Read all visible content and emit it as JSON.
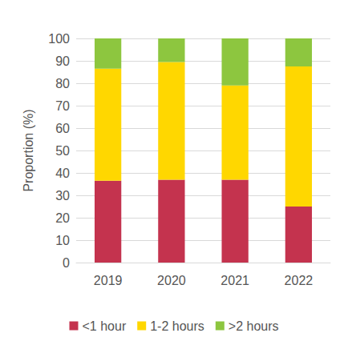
{
  "chart_data": {
    "type": "bar",
    "stacked": true,
    "grid": true,
    "legend": "bottom",
    "y_label": "Proportion (%)",
    "categories": [
      "2019",
      "2020",
      "2021",
      "2022"
    ],
    "series": [
      {
        "name": "<1 hour",
        "color": "#c4334e",
        "values": [
          36.5,
          37,
          37,
          25
        ]
      },
      {
        "name": "1-2 hours",
        "color": "#ffd700",
        "values": [
          50,
          52.5,
          42,
          62.5
        ]
      },
      {
        "name": ">2 hours",
        "color": "#8dc63f",
        "values": [
          13.5,
          10.5,
          21,
          12.5
        ]
      }
    ],
    "ylim": [
      0,
      100
    ],
    "yticks": [
      0,
      10,
      20,
      30,
      40,
      50,
      60,
      70,
      80,
      90,
      100
    ]
  }
}
